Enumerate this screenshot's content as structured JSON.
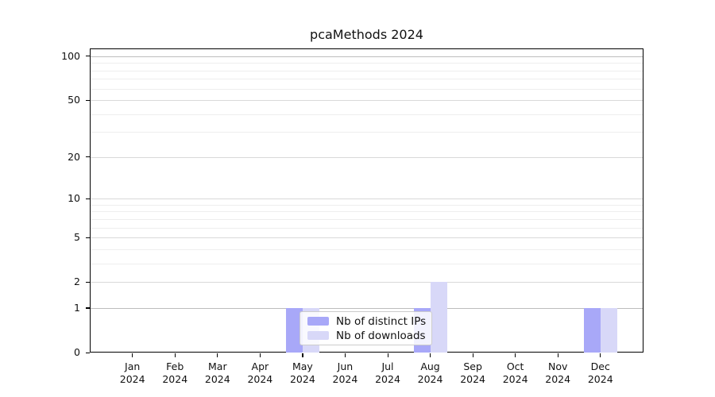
{
  "chart_data": {
    "type": "bar",
    "title": "pcaMethods 2024",
    "categories": [
      "Jan",
      "Feb",
      "Mar",
      "Apr",
      "May",
      "Jun",
      "Jul",
      "Aug",
      "Sep",
      "Oct",
      "Nov",
      "Dec"
    ],
    "category_year": "2024",
    "series": [
      {
        "name": "Nb of distinct IPs",
        "color": "#a8a8f8",
        "values": [
          0,
          0,
          0,
          0,
          1,
          0,
          0,
          1,
          0,
          0,
          0,
          1
        ]
      },
      {
        "name": "Nb of downloads",
        "color": "#d8d8f8",
        "values": [
          0,
          0,
          0,
          0,
          1,
          0,
          0,
          2,
          0,
          0,
          0,
          1
        ]
      }
    ],
    "yscale": "log1p",
    "ylim": [
      0,
      113
    ],
    "y_major_ticks": [
      0,
      1,
      2,
      5,
      10,
      20,
      50,
      100
    ],
    "y_minor_ticks": [
      3,
      4,
      6,
      7,
      8,
      9,
      30,
      40,
      60,
      70,
      80,
      90
    ],
    "grid": true,
    "legend": {
      "position": "inside-lower-center",
      "entries": [
        "Nb of distinct IPs",
        "Nb of downloads"
      ]
    }
  },
  "colors": {
    "grid_major": "#d9d9d9",
    "grid_emphasis": "#bdbdbd",
    "grid_minor": "#eeeeee",
    "spine": "#000000",
    "text": "#111111",
    "legend_border": "#cccccc",
    "legend_bg": "rgba(255,255,255,0.85)",
    "series_ips": "#a8a8f8",
    "series_downloads": "#d8d8f8"
  }
}
